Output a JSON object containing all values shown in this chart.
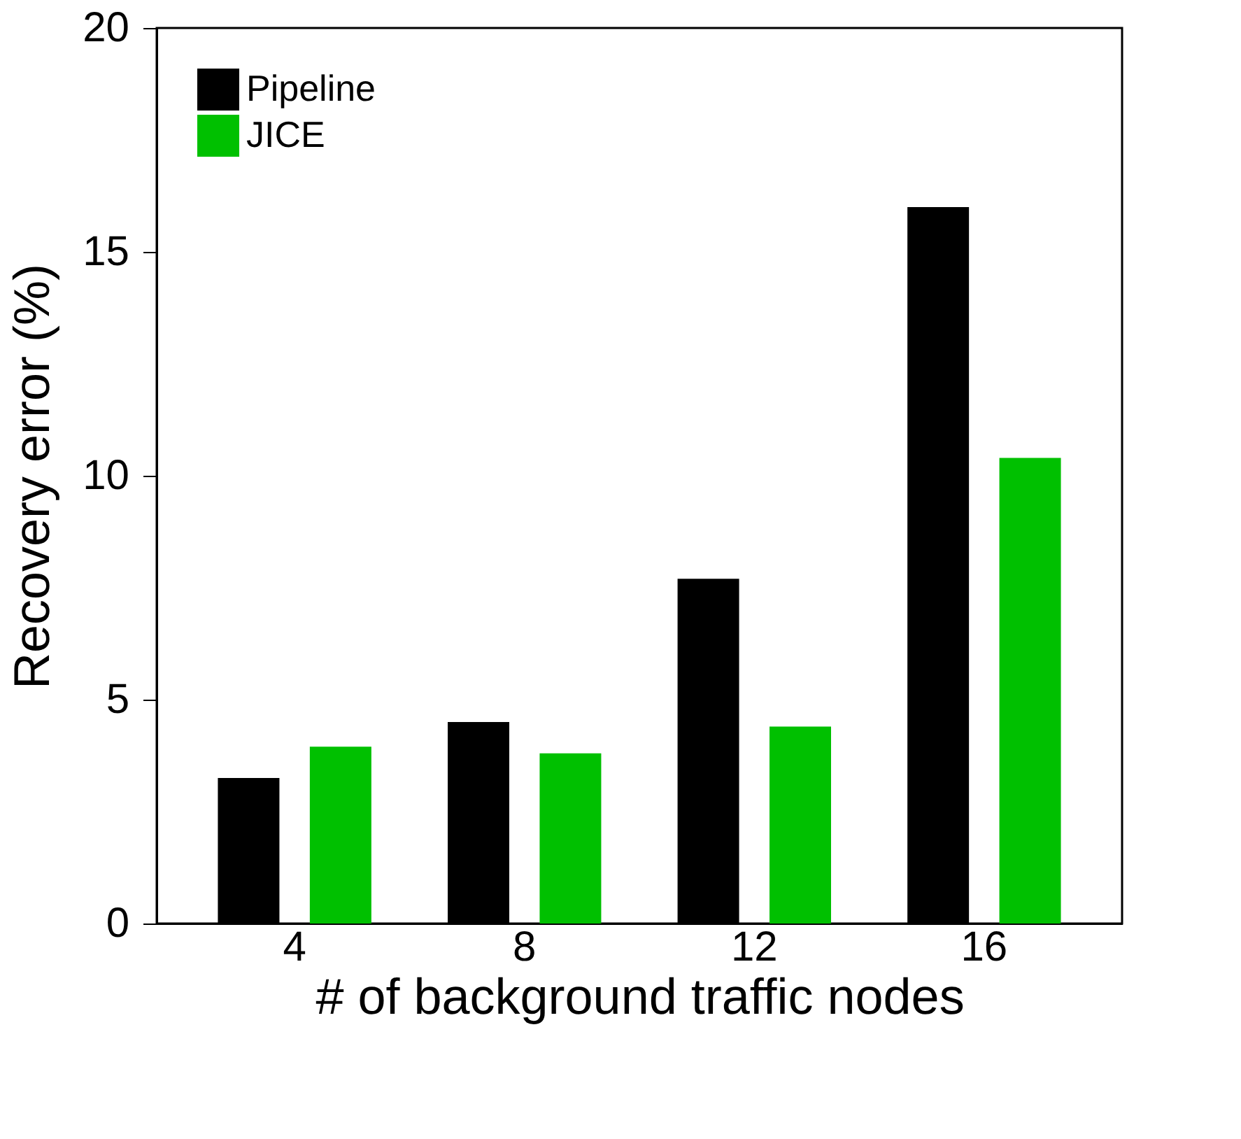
{
  "chart_data": {
    "type": "bar",
    "xlabel": "# of background traffic nodes",
    "ylabel": "Recovery error (%)",
    "categories": [
      "4",
      "8",
      "12",
      "16"
    ],
    "series": [
      {
        "name": "Pipeline",
        "color": "#000000",
        "values": [
          3.25,
          4.5,
          7.7,
          16.0
        ]
      },
      {
        "name": "JICE",
        "color": "#00c000",
        "values": [
          3.95,
          3.8,
          4.4,
          10.4
        ]
      }
    ],
    "ylim": [
      0,
      20
    ],
    "yticks": [
      0,
      5,
      10,
      15,
      20
    ],
    "grid": false,
    "legend": "top left"
  }
}
